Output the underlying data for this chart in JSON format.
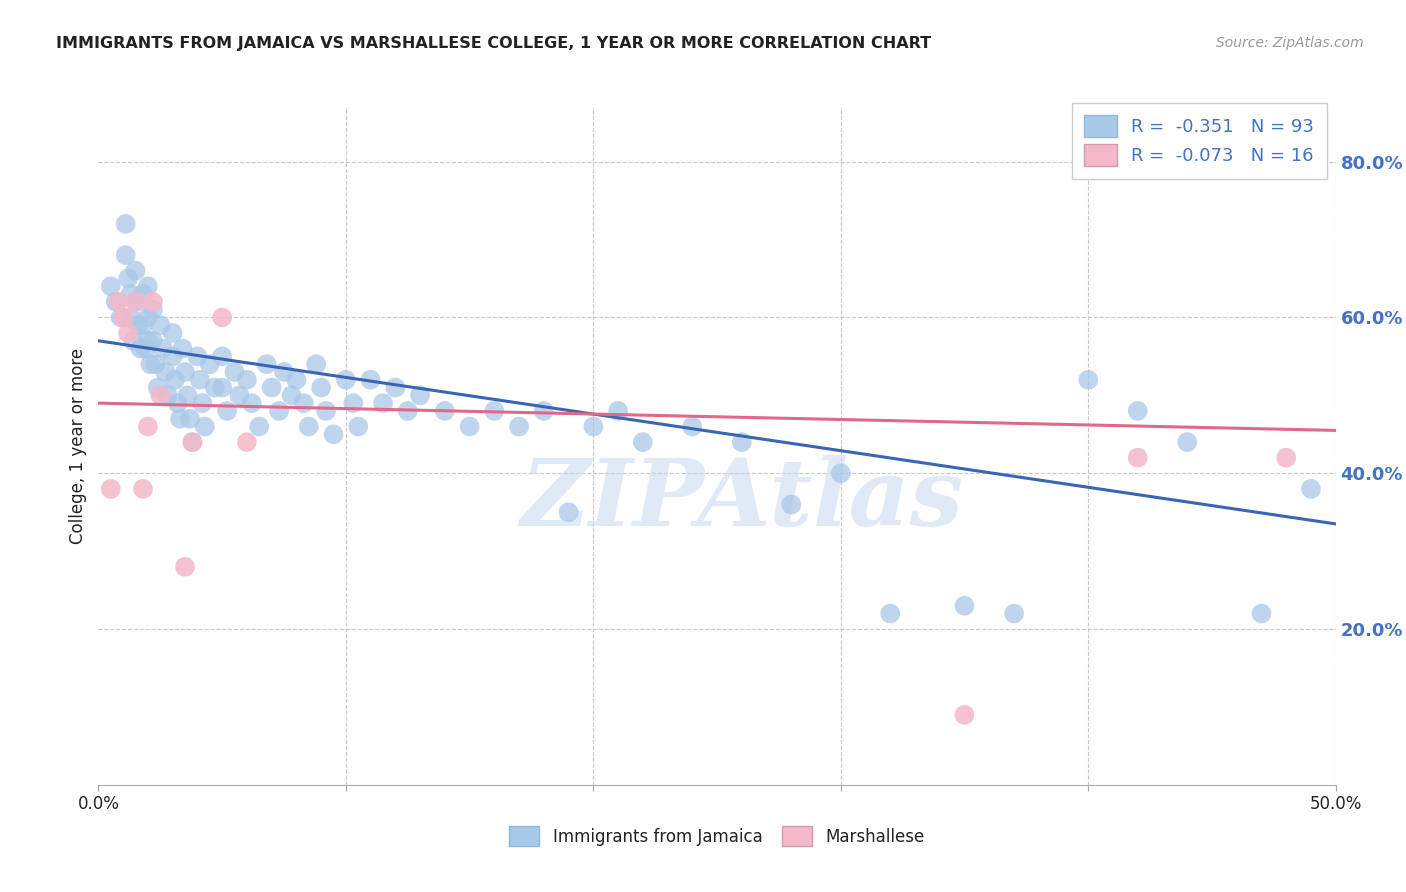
{
  "title": "IMMIGRANTS FROM JAMAICA VS MARSHALLESE COLLEGE, 1 YEAR OR MORE CORRELATION CHART",
  "source": "Source: ZipAtlas.com",
  "ylabel": "College, 1 year or more",
  "legend_label1": "Immigrants from Jamaica",
  "legend_label2": "Marshallese",
  "r1": -0.351,
  "n1": 93,
  "r2": -0.073,
  "n2": 16,
  "color_blue": "#a8c8e8",
  "color_pink": "#f4b8c8",
  "color_blue_line": "#3a65b5",
  "color_pink_line": "#e06888",
  "color_blue_text": "#4472c4",
  "color_dark_text": "#222222",
  "color_grid": "#c8c8c8",
  "xlim": [
    0.0,
    0.5
  ],
  "ylim": [
    0.0,
    0.87
  ],
  "yticks": [
    0.2,
    0.4,
    0.6,
    0.8
  ],
  "ytick_labels": [
    "20.0%",
    "40.0%",
    "60.0%",
    "80.0%"
  ],
  "xticks": [
    0.0,
    0.1,
    0.2,
    0.3,
    0.4,
    0.5
  ],
  "watermark": "ZIPAtlas",
  "blue_points_x": [
    0.005,
    0.007,
    0.009,
    0.011,
    0.011,
    0.012,
    0.013,
    0.013,
    0.014,
    0.015,
    0.015,
    0.016,
    0.017,
    0.018,
    0.018,
    0.019,
    0.02,
    0.02,
    0.02,
    0.021,
    0.022,
    0.022,
    0.023,
    0.024,
    0.025,
    0.026,
    0.027,
    0.028,
    0.03,
    0.03,
    0.031,
    0.032,
    0.033,
    0.034,
    0.035,
    0.036,
    0.037,
    0.038,
    0.04,
    0.041,
    0.042,
    0.043,
    0.045,
    0.047,
    0.05,
    0.05,
    0.052,
    0.055,
    0.057,
    0.06,
    0.062,
    0.065,
    0.068,
    0.07,
    0.073,
    0.075,
    0.078,
    0.08,
    0.083,
    0.085,
    0.088,
    0.09,
    0.092,
    0.095,
    0.1,
    0.103,
    0.105,
    0.11,
    0.115,
    0.12,
    0.125,
    0.13,
    0.14,
    0.15,
    0.16,
    0.17,
    0.18,
    0.19,
    0.2,
    0.21,
    0.22,
    0.24,
    0.26,
    0.28,
    0.3,
    0.32,
    0.35,
    0.37,
    0.4,
    0.42,
    0.44,
    0.47,
    0.49
  ],
  "blue_points_y": [
    0.64,
    0.62,
    0.6,
    0.68,
    0.72,
    0.65,
    0.63,
    0.6,
    0.57,
    0.66,
    0.62,
    0.59,
    0.56,
    0.63,
    0.59,
    0.56,
    0.64,
    0.6,
    0.57,
    0.54,
    0.61,
    0.57,
    0.54,
    0.51,
    0.59,
    0.56,
    0.53,
    0.5,
    0.58,
    0.55,
    0.52,
    0.49,
    0.47,
    0.56,
    0.53,
    0.5,
    0.47,
    0.44,
    0.55,
    0.52,
    0.49,
    0.46,
    0.54,
    0.51,
    0.55,
    0.51,
    0.48,
    0.53,
    0.5,
    0.52,
    0.49,
    0.46,
    0.54,
    0.51,
    0.48,
    0.53,
    0.5,
    0.52,
    0.49,
    0.46,
    0.54,
    0.51,
    0.48,
    0.45,
    0.52,
    0.49,
    0.46,
    0.52,
    0.49,
    0.51,
    0.48,
    0.5,
    0.48,
    0.46,
    0.48,
    0.46,
    0.48,
    0.35,
    0.46,
    0.48,
    0.44,
    0.46,
    0.44,
    0.36,
    0.4,
    0.22,
    0.23,
    0.22,
    0.52,
    0.48,
    0.44,
    0.22,
    0.38
  ],
  "pink_points_x": [
    0.005,
    0.008,
    0.01,
    0.012,
    0.015,
    0.018,
    0.02,
    0.022,
    0.025,
    0.035,
    0.038,
    0.05,
    0.06,
    0.35,
    0.42,
    0.48
  ],
  "pink_points_y": [
    0.38,
    0.62,
    0.6,
    0.58,
    0.62,
    0.38,
    0.46,
    0.62,
    0.5,
    0.28,
    0.44,
    0.6,
    0.44,
    0.09,
    0.42,
    0.42
  ],
  "blue_line_x0": 0.0,
  "blue_line_x1": 0.5,
  "blue_line_y0": 0.57,
  "blue_line_y1": 0.335,
  "pink_line_x0": 0.0,
  "pink_line_x1": 0.5,
  "pink_line_y0": 0.49,
  "pink_line_y1": 0.455
}
